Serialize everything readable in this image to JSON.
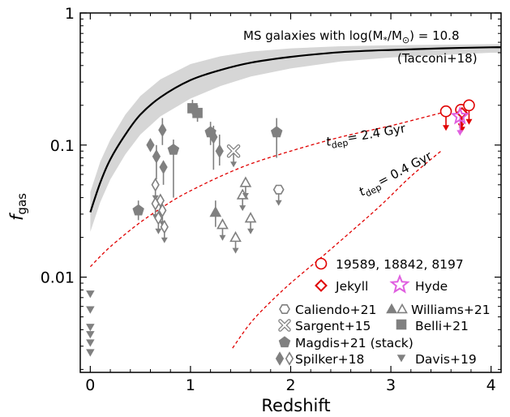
{
  "chart_data": {
    "type": "scatter",
    "xlabel": "Redshift",
    "ylabel_main": "f",
    "ylabel_sub": "gas",
    "xlim": [
      -0.1,
      4.1
    ],
    "ylim": [
      0.0019,
      1.0
    ],
    "yscale": "log",
    "xticks": [
      0,
      1,
      2,
      3,
      4
    ],
    "xtick_labels": [
      "0",
      "1",
      "2",
      "3",
      "4"
    ],
    "yticks": [
      1,
      0.1,
      0.01
    ],
    "ytick_labels": [
      "1",
      "0.1",
      "0.01"
    ],
    "annotations": {
      "ms_line1": "MS galaxies with log(M",
      "ms_line1_sub": "*",
      "ms_line1_mid": "/M",
      "ms_line1_sun": "⊙",
      "ms_line1_end": ") = 10.8",
      "ms_line2": "(Tacconi+18)",
      "tdep1_main": "t",
      "tdep1_sub": "dep",
      "tdep1_value": "= 2.4 Gyr",
      "tdep2_main": "t",
      "tdep2_sub": "dep",
      "tdep2_value": "= 0.4 Gyr"
    },
    "ms_curve": {
      "x": [
        0,
        0.1,
        0.2,
        0.35,
        0.5,
        0.7,
        1.0,
        1.3,
        1.6,
        2.0,
        2.5,
        3.0,
        3.5,
        4.0,
        4.1
      ],
      "y": [
        0.031,
        0.052,
        0.078,
        0.12,
        0.17,
        0.23,
        0.31,
        0.37,
        0.42,
        0.465,
        0.505,
        0.525,
        0.54,
        0.55,
        0.55
      ],
      "band_low": [
        0.022,
        0.037,
        0.055,
        0.085,
        0.12,
        0.165,
        0.225,
        0.28,
        0.33,
        0.38,
        0.43,
        0.46,
        0.48,
        0.5,
        0.5
      ],
      "band_high": [
        0.044,
        0.075,
        0.11,
        0.17,
        0.235,
        0.315,
        0.41,
        0.47,
        0.51,
        0.54,
        0.56,
        0.57,
        0.575,
        0.58,
        0.58
      ],
      "color": "#000000",
      "band_color": "#d6d6d6"
    },
    "tdep_curves": [
      {
        "x": [
          0,
          0.2,
          0.5,
          0.8,
          1.0,
          1.3,
          1.6,
          2.0,
          2.5,
          3.0,
          3.3,
          3.5
        ],
        "y": [
          0.012,
          0.017,
          0.026,
          0.037,
          0.045,
          0.058,
          0.072,
          0.09,
          0.115,
          0.14,
          0.16,
          0.175
        ],
        "color": "#e00000"
      },
      {
        "x": [
          1.42,
          1.6,
          1.8,
          2.0,
          2.3,
          2.6,
          2.9,
          3.2,
          3.5
        ],
        "y": [
          0.0029,
          0.0045,
          0.0065,
          0.009,
          0.014,
          0.022,
          0.035,
          0.058,
          0.09
        ],
        "color": "#e00000"
      }
    ],
    "series": [
      {
        "name": "19589, 18842, 8197",
        "marker": "circle-open",
        "color": "#e00000",
        "points": [
          {
            "x": 3.55,
            "y": 0.18,
            "upper": true
          },
          {
            "x": 3.7,
            "y": 0.185,
            "upper": true
          },
          {
            "x": 3.78,
            "y": 0.2,
            "upper": true
          }
        ]
      },
      {
        "name": "Jekyll",
        "marker": "diamond-open",
        "color": "#e00000",
        "points": [
          {
            "x": 3.71,
            "y": 0.175,
            "upper": true
          }
        ]
      },
      {
        "name": "Hyde",
        "marker": "star-open",
        "color": "#e060e0",
        "points": [
          {
            "x": 3.69,
            "y": 0.165,
            "upper": true
          }
        ]
      },
      {
        "name": "Caliendo+21",
        "marker": "hexagon-open",
        "color": "#808080",
        "points": [
          {
            "x": 1.88,
            "y": 0.046,
            "upper": true
          }
        ]
      },
      {
        "name": "Williams+21",
        "marker": "triangle",
        "color": "#808080",
        "points": [
          {
            "x": 1.25,
            "y": 0.031,
            "filled": true,
            "err": [
              0.024,
              0.038
            ]
          },
          {
            "x": 1.32,
            "y": 0.025,
            "filled": false,
            "upper": true
          },
          {
            "x": 1.45,
            "y": 0.02,
            "filled": false,
            "upper": true
          },
          {
            "x": 1.52,
            "y": 0.042,
            "filled": false,
            "upper": true
          },
          {
            "x": 1.55,
            "y": 0.052,
            "filled": false,
            "upper": true
          },
          {
            "x": 1.6,
            "y": 0.028,
            "filled": false,
            "upper": true
          }
        ]
      },
      {
        "name": "Sargent+15",
        "marker": "cross-open",
        "color": "#808080",
        "points": [
          {
            "x": 1.43,
            "y": 0.09,
            "upper": true
          }
        ]
      },
      {
        "name": "Belli+21",
        "marker": "square",
        "color": "#808080",
        "points": [
          {
            "x": 1.02,
            "y": 0.19,
            "err": [
              0.17,
              0.22
            ]
          },
          {
            "x": 1.07,
            "y": 0.175,
            "err": [
              0.15,
              0.2
            ]
          }
        ]
      },
      {
        "name": "Magdis+21 (stack)",
        "marker": "pentagon",
        "color": "#808080",
        "points": [
          {
            "x": 0.48,
            "y": 0.032,
            "err": [
              0.027,
              0.038
            ]
          },
          {
            "x": 0.83,
            "y": 0.092,
            "err": [
              0.04,
              0.11
            ]
          },
          {
            "x": 1.2,
            "y": 0.125,
            "err": [
              0.1,
              0.15
            ]
          },
          {
            "x": 1.86,
            "y": 0.125,
            "err": [
              0.08,
              0.16
            ]
          }
        ]
      },
      {
        "name": "Spilker+18",
        "marker": "diamond",
        "color": "#808080",
        "points": [
          {
            "x": 0.6,
            "y": 0.1,
            "filled": true
          },
          {
            "x": 0.66,
            "y": 0.082,
            "filled": true,
            "err": [
              0.055,
              0.1
            ]
          },
          {
            "x": 0.72,
            "y": 0.13,
            "filled": true,
            "err": [
              0.1,
              0.16
            ]
          },
          {
            "x": 0.73,
            "y": 0.068,
            "filled": true,
            "err": [
              0.05,
              0.075
            ]
          },
          {
            "x": 1.23,
            "y": 0.115,
            "filled": true,
            "err": [
              0.065,
              0.14
            ]
          },
          {
            "x": 1.29,
            "y": 0.09,
            "filled": true,
            "err": [
              0.07,
              0.12
            ]
          },
          {
            "x": 0.65,
            "y": 0.05,
            "filled": false,
            "upper": true
          },
          {
            "x": 0.65,
            "y": 0.036,
            "filled": false,
            "upper": true
          },
          {
            "x": 0.68,
            "y": 0.028,
            "filled": false,
            "upper": true
          },
          {
            "x": 0.7,
            "y": 0.038,
            "filled": false,
            "upper": true
          },
          {
            "x": 0.72,
            "y": 0.032,
            "filled": false,
            "upper": true
          },
          {
            "x": 0.74,
            "y": 0.024,
            "filled": false,
            "upper": true
          }
        ]
      },
      {
        "name": "Davis+19",
        "marker": "triangle-down",
        "color": "#808080",
        "points": [
          {
            "x": 0.0,
            "y": 0.0075
          },
          {
            "x": 0.0,
            "y": 0.0057
          },
          {
            "x": 0.0,
            "y": 0.0042
          },
          {
            "x": 0.0,
            "y": 0.0037
          },
          {
            "x": 0.0,
            "y": 0.0032
          },
          {
            "x": 0.0,
            "y": 0.0027
          }
        ]
      }
    ],
    "legend": {
      "placement": "lower-right",
      "entries": [
        {
          "label": "19589, 18842, 8197",
          "marker": "circle-open",
          "color": "#e00000"
        },
        {
          "label": "Jekyll",
          "marker": "diamond-open",
          "color": "#e00000"
        },
        {
          "label": "Hyde",
          "marker": "star-open",
          "color": "#e060e0"
        },
        {
          "label": "Caliendo+21",
          "marker": "hexagon-open",
          "color": "#808080"
        },
        {
          "label": "Williams+21",
          "marker": "triangle-pair",
          "color": "#808080"
        },
        {
          "label": "Sargent+15",
          "marker": "cross-open",
          "color": "#808080"
        },
        {
          "label": "Belli+21",
          "marker": "square",
          "color": "#808080"
        },
        {
          "label": "Magdis+21 (stack)",
          "marker": "pentagon",
          "color": "#808080"
        },
        {
          "label": "Spilker+18",
          "marker": "diamond-pair",
          "color": "#808080"
        },
        {
          "label": "Davis+19",
          "marker": "triangle-down",
          "color": "#808080"
        }
      ]
    }
  }
}
